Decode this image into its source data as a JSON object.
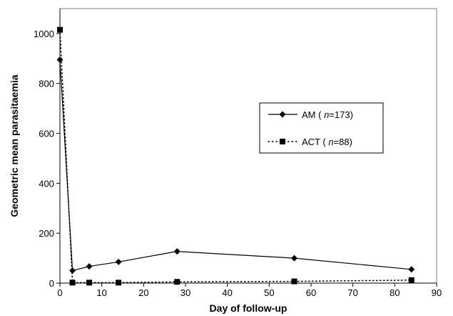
{
  "chart_data": {
    "type": "line",
    "title": "",
    "xlabel": "Day of follow-up",
    "ylabel": "Geometric mean parasitaemia",
    "xlim": [
      0,
      90
    ],
    "ylim": [
      0,
      1100
    ],
    "xticks": [
      "0",
      "10",
      "20",
      "30",
      "40",
      "50",
      "60",
      "70",
      "80",
      "90"
    ],
    "yticks": [
      "0",
      "200",
      "400",
      "600",
      "800",
      "1000"
    ],
    "grid": false,
    "legend_position": "right",
    "series": [
      {
        "id": "am",
        "name_prefix": "AM ( ",
        "name_n": "n",
        "name_suffix": "=173)",
        "marker": "diamond",
        "line": "solid",
        "color": "#000000",
        "x": [
          0,
          3,
          7,
          14,
          28,
          56,
          84
        ],
        "y": [
          895,
          50,
          67,
          85,
          127,
          100,
          55
        ]
      },
      {
        "id": "act",
        "name_prefix": "ACT ( ",
        "name_n": "n",
        "name_suffix": "=88)",
        "marker": "square",
        "line": "dotted",
        "color": "#000000",
        "x": [
          0,
          3,
          7,
          14,
          28,
          56,
          84
        ],
        "y": [
          1015,
          2,
          2,
          2,
          5,
          7,
          12
        ]
      }
    ]
  }
}
